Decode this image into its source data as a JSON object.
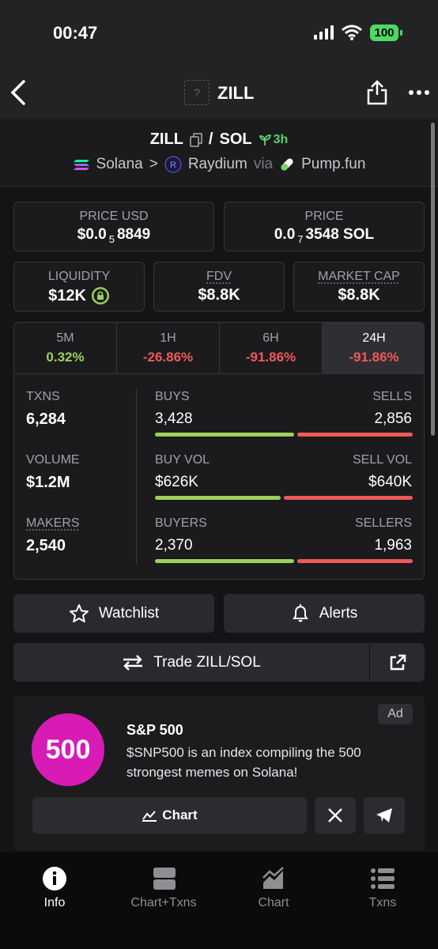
{
  "status_bar": {
    "time": "00:47",
    "battery": "100"
  },
  "nav": {
    "icon_placeholder": "?",
    "title": "ZILL"
  },
  "pair": {
    "base": "ZILL",
    "separator": "/",
    "quote": "SOL",
    "age": "3h"
  },
  "route": {
    "chain": "Solana",
    "arrow": ">",
    "dex": "Raydium",
    "via": "via",
    "launchpad": "Pump.fun"
  },
  "price_usd": {
    "label": "PRICE USD",
    "prefix": "$0.0",
    "zeros": "5",
    "digits": "8849"
  },
  "price": {
    "label": "PRICE",
    "prefix": "0.0",
    "zeros": "7",
    "digits": "3548 SOL"
  },
  "metrics": [
    {
      "label": "LIQUIDITY",
      "value": "$12K"
    },
    {
      "label": "FDV",
      "value": "$8.8K"
    },
    {
      "label": "MARKET CAP",
      "value": "$8.8K"
    }
  ],
  "timeframes": [
    {
      "label": "5M",
      "change": "0.32%"
    },
    {
      "label": "1H",
      "change": "-26.86%"
    },
    {
      "label": "6H",
      "change": "-91.86%"
    },
    {
      "label": "24H",
      "change": "-91.86%"
    }
  ],
  "activity": [
    {
      "label": "TXNS",
      "total": "6,284",
      "buy_label": "BUYS",
      "buy": "3,428",
      "sell_label": "SELLS",
      "sell": "2,856"
    },
    {
      "label": "VOLUME",
      "total": "$1.2M",
      "buy_label": "BUY VOL",
      "buy": "$626K",
      "sell_label": "SELL VOL",
      "sell": "$640K"
    },
    {
      "label": "MAKERS",
      "total": "2,540",
      "buy_label": "BUYERS",
      "buy": "2,370",
      "sell_label": "SELLERS",
      "sell": "1,963"
    }
  ],
  "actions": {
    "watchlist": "Watchlist",
    "alerts": "Alerts",
    "trade": "Trade ZILL/SOL"
  },
  "ad": {
    "badge": "Ad",
    "logo": "500",
    "title": "S&P 500",
    "description": "$SNP500 is an index compiling the 500 strongest memes on Solana!",
    "button": "Chart"
  },
  "tabs": [
    "Info",
    "Chart+Txns",
    "Chart",
    "Txns"
  ]
}
